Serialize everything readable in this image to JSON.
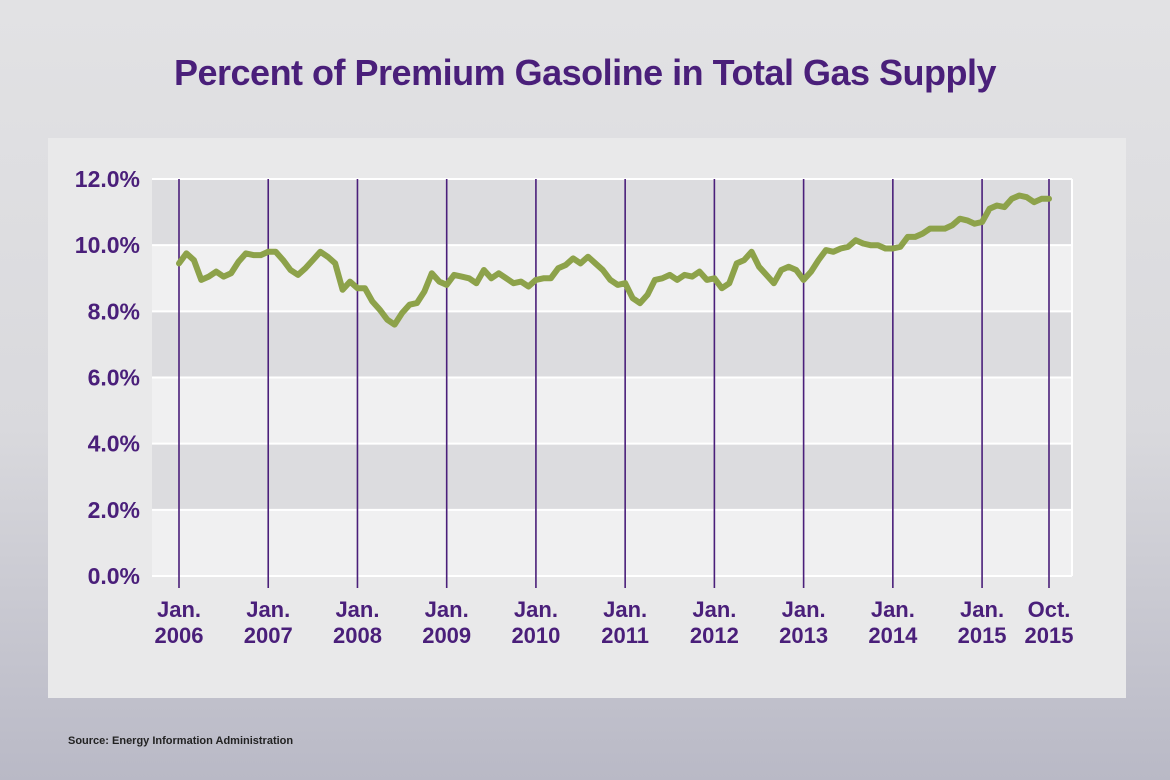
{
  "title": "Percent of Premium Gasoline in Total Gas Supply",
  "source": "Source: Energy Information Administration",
  "colors": {
    "title": "#4a1f7a",
    "line": "#8da24a",
    "vertical_lines": "#4a1f7a",
    "band_dark": "#dcdcdf",
    "band_light": "#f0f0f1",
    "grid": "#ffffff"
  },
  "chart_data": {
    "type": "line",
    "title": "Percent of Premium Gasoline in Total Gas Supply",
    "xlabel": "",
    "ylabel": "",
    "ylim": [
      0,
      12
    ],
    "y_ticks": [
      "0.0%",
      "2.0%",
      "4.0%",
      "6.0%",
      "8.0%",
      "10.0%",
      "12.0%"
    ],
    "x_ticks": [
      {
        "line1": "Jan.",
        "line2": "2006",
        "date": "2006-01"
      },
      {
        "line1": "Jan.",
        "line2": "2007",
        "date": "2007-01"
      },
      {
        "line1": "Jan.",
        "line2": "2008",
        "date": "2008-01"
      },
      {
        "line1": "Jan.",
        "line2": "2009",
        "date": "2009-01"
      },
      {
        "line1": "Jan.",
        "line2": "2010",
        "date": "2010-01"
      },
      {
        "line1": "Jan.",
        "line2": "2011",
        "date": "2011-01"
      },
      {
        "line1": "Jan.",
        "line2": "2012",
        "date": "2012-01"
      },
      {
        "line1": "Jan.",
        "line2": "2013",
        "date": "2013-01"
      },
      {
        "line1": "Jan.",
        "line2": "2014",
        "date": "2014-01"
      },
      {
        "line1": "Jan.",
        "line2": "2015",
        "date": "2015-01"
      },
      {
        "line1": "Oct.",
        "line2": "2015",
        "date": "2015-10"
      }
    ],
    "grid": true,
    "legend": "none",
    "series": [
      {
        "x": [
          "2006-01",
          "2006-02",
          "2006-03",
          "2006-04",
          "2006-05",
          "2006-06",
          "2006-07",
          "2006-08",
          "2006-09",
          "2006-10",
          "2006-11",
          "2006-12",
          "2007-01",
          "2007-02",
          "2007-03",
          "2007-04",
          "2007-05",
          "2007-06",
          "2007-07",
          "2007-08",
          "2007-09",
          "2007-10",
          "2007-11",
          "2007-12",
          "2008-01",
          "2008-02",
          "2008-03",
          "2008-04",
          "2008-05",
          "2008-06",
          "2008-07",
          "2008-08",
          "2008-09",
          "2008-10",
          "2008-11",
          "2008-12",
          "2009-01",
          "2009-02",
          "2009-03",
          "2009-04",
          "2009-05",
          "2009-06",
          "2009-07",
          "2009-08",
          "2009-09",
          "2009-10",
          "2009-11",
          "2009-12",
          "2010-01",
          "2010-02",
          "2010-03",
          "2010-04",
          "2010-05",
          "2010-06",
          "2010-07",
          "2010-08",
          "2010-09",
          "2010-10",
          "2010-11",
          "2010-12",
          "2011-01",
          "2011-02",
          "2011-03",
          "2011-04",
          "2011-05",
          "2011-06",
          "2011-07",
          "2011-08",
          "2011-09",
          "2011-10",
          "2011-11",
          "2011-12",
          "2012-01",
          "2012-02",
          "2012-03",
          "2012-04",
          "2012-05",
          "2012-06",
          "2012-07",
          "2012-08",
          "2012-09",
          "2012-10",
          "2012-11",
          "2012-12",
          "2013-01",
          "2013-02",
          "2013-03",
          "2013-04",
          "2013-05",
          "2013-06",
          "2013-07",
          "2013-08",
          "2013-09",
          "2013-10",
          "2013-11",
          "2013-12",
          "2014-01",
          "2014-02",
          "2014-03",
          "2014-04",
          "2014-05",
          "2014-06",
          "2014-07",
          "2014-08",
          "2014-09",
          "2014-10",
          "2014-11",
          "2014-12",
          "2015-01",
          "2015-02",
          "2015-03",
          "2015-04",
          "2015-05",
          "2015-06",
          "2015-07",
          "2015-08",
          "2015-09",
          "2015-10"
        ],
        "values": [
          9.45,
          9.75,
          9.55,
          8.95,
          9.05,
          9.2,
          9.05,
          9.15,
          9.5,
          9.75,
          9.7,
          9.7,
          9.8,
          9.8,
          9.55,
          9.25,
          9.1,
          9.3,
          9.55,
          9.8,
          9.65,
          9.45,
          8.65,
          8.9,
          8.7,
          8.7,
          8.3,
          8.05,
          7.75,
          7.6,
          7.95,
          8.2,
          8.25,
          8.6,
          9.15,
          8.9,
          8.8,
          9.1,
          9.05,
          9.0,
          8.85,
          9.25,
          9.0,
          9.15,
          9.0,
          8.85,
          8.9,
          8.75,
          8.95,
          9.0,
          9.0,
          9.3,
          9.4,
          9.6,
          9.45,
          9.65,
          9.45,
          9.25,
          8.95,
          8.8,
          8.85,
          8.4,
          8.25,
          8.5,
          8.95,
          9.0,
          9.1,
          8.95,
          9.1,
          9.05,
          9.2,
          8.95,
          9.0,
          8.7,
          8.85,
          9.45,
          9.55,
          9.8,
          9.35,
          9.1,
          8.85,
          9.25,
          9.35,
          9.25,
          8.95,
          9.2,
          9.55,
          9.85,
          9.8,
          9.9,
          9.95,
          10.15,
          10.05,
          10.0,
          10.0,
          9.9,
          9.9,
          9.95,
          10.25,
          10.25,
          10.35,
          10.5,
          10.5,
          10.5,
          10.6,
          10.8,
          10.75,
          10.65,
          10.7,
          11.1,
          11.2,
          11.15,
          11.4,
          11.5,
          11.45,
          11.3,
          11.4,
          11.4
        ]
      }
    ]
  }
}
